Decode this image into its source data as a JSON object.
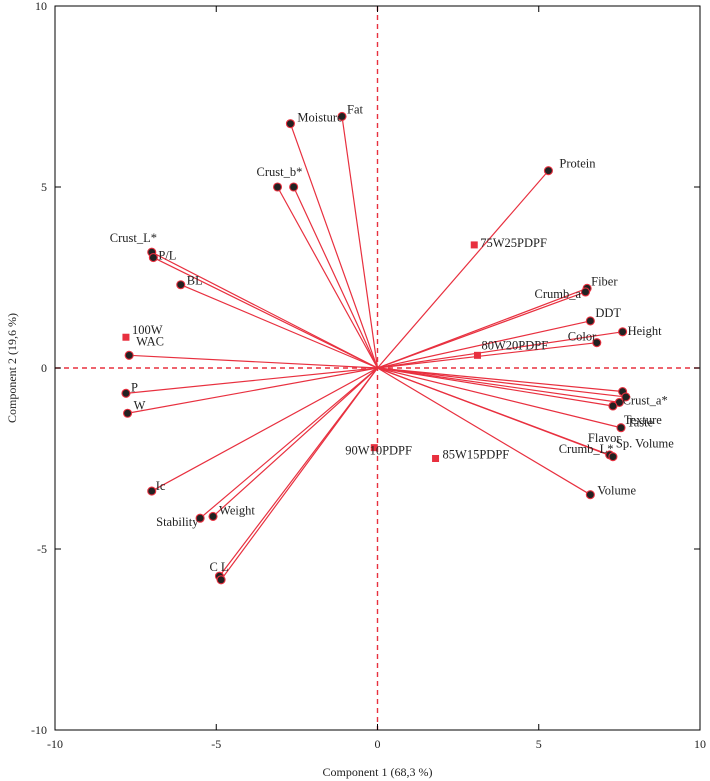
{
  "chart_data": {
    "type": "scatter",
    "subtype": "pca-biplot",
    "title": "",
    "xlabel": "Component 1 (68,3 %)",
    "ylabel": "Component 2 (19,6 %)",
    "xlim": [
      -10,
      10
    ],
    "ylim": [
      -10,
      10
    ],
    "xticks": [
      -10,
      -5,
      0,
      5,
      10
    ],
    "yticks": [
      -10,
      -5,
      0,
      5,
      10
    ],
    "xtick_labels": [
      "-10",
      "-5",
      "0",
      "5",
      "10"
    ],
    "ytick_labels": [
      "-10",
      "-5",
      "0",
      "5",
      "10"
    ],
    "reference_lines": {
      "x": 0,
      "y": 0,
      "style": "dashed"
    },
    "colors": {
      "accent": "#e8303f",
      "point_fill": "#222222",
      "axis": "#000000"
    },
    "series": [
      {
        "name": "variables",
        "marker": "circle-vector",
        "points": [
          {
            "label": "Fat",
            "x": -1.1,
            "y": 6.95
          },
          {
            "label": "Moisture",
            "x": -2.7,
            "y": 6.75
          },
          {
            "label": "Crust_b*",
            "x": -3.1,
            "y": 5.0
          },
          {
            "label": "",
            "x": -2.6,
            "y": 5.0
          },
          {
            "label": "Protein",
            "x": 5.3,
            "y": 5.45
          },
          {
            "label": "Crust_L*",
            "x": -7.0,
            "y": 3.2
          },
          {
            "label": "P/L",
            "x": -6.95,
            "y": 3.05
          },
          {
            "label": "BL",
            "x": -6.1,
            "y": 2.3
          },
          {
            "label": "Fiber",
            "x": 6.5,
            "y": 2.2
          },
          {
            "label": "Crumb_a*",
            "x": 6.45,
            "y": 2.1
          },
          {
            "label": "DDT",
            "x": 6.6,
            "y": 1.3
          },
          {
            "label": "Height",
            "x": 7.6,
            "y": 1.0
          },
          {
            "label": "Color",
            "x": 6.8,
            "y": 0.7
          },
          {
            "label": "WAC",
            "x": -7.7,
            "y": 0.35
          },
          {
            "label": "P",
            "x": -7.8,
            "y": -0.7
          },
          {
            "label": "W",
            "x": -7.75,
            "y": -1.25
          },
          {
            "label": "Crust_a*",
            "x": 7.6,
            "y": -0.65
          },
          {
            "label": "Texture",
            "x": 7.7,
            "y": -0.8
          },
          {
            "label": "",
            "x": 7.5,
            "y": -0.95
          },
          {
            "label": "Flavor",
            "x": 7.3,
            "y": -1.05
          },
          {
            "label": "Taste",
            "x": 7.55,
            "y": -1.65
          },
          {
            "label": "Crumb_L*",
            "x": 7.2,
            "y": -2.4
          },
          {
            "label": "Sp. Volume",
            "x": 7.3,
            "y": -2.45
          },
          {
            "label": "Volume",
            "x": 6.6,
            "y": -3.5
          },
          {
            "label": "Ic",
            "x": -7.0,
            "y": -3.4
          },
          {
            "label": "Stability",
            "x": -5.5,
            "y": -4.15
          },
          {
            "label": "Weight",
            "x": -5.1,
            "y": -4.1
          },
          {
            "label": "C L",
            "x": -4.9,
            "y": -5.75
          },
          {
            "label": "",
            "x": -4.85,
            "y": -5.85
          }
        ]
      },
      {
        "name": "samples",
        "marker": "square",
        "points": [
          {
            "label": "75W25PDPF",
            "x": 3.0,
            "y": 3.4
          },
          {
            "label": "100W",
            "x": -7.8,
            "y": 0.85
          },
          {
            "label": "80W20PDPF",
            "x": 3.1,
            "y": 0.35
          },
          {
            "label": "90W10PDPF",
            "x": -0.1,
            "y": -2.2
          },
          {
            "label": "85W15PDPF",
            "x": 1.8,
            "y": -2.5
          }
        ]
      }
    ]
  }
}
